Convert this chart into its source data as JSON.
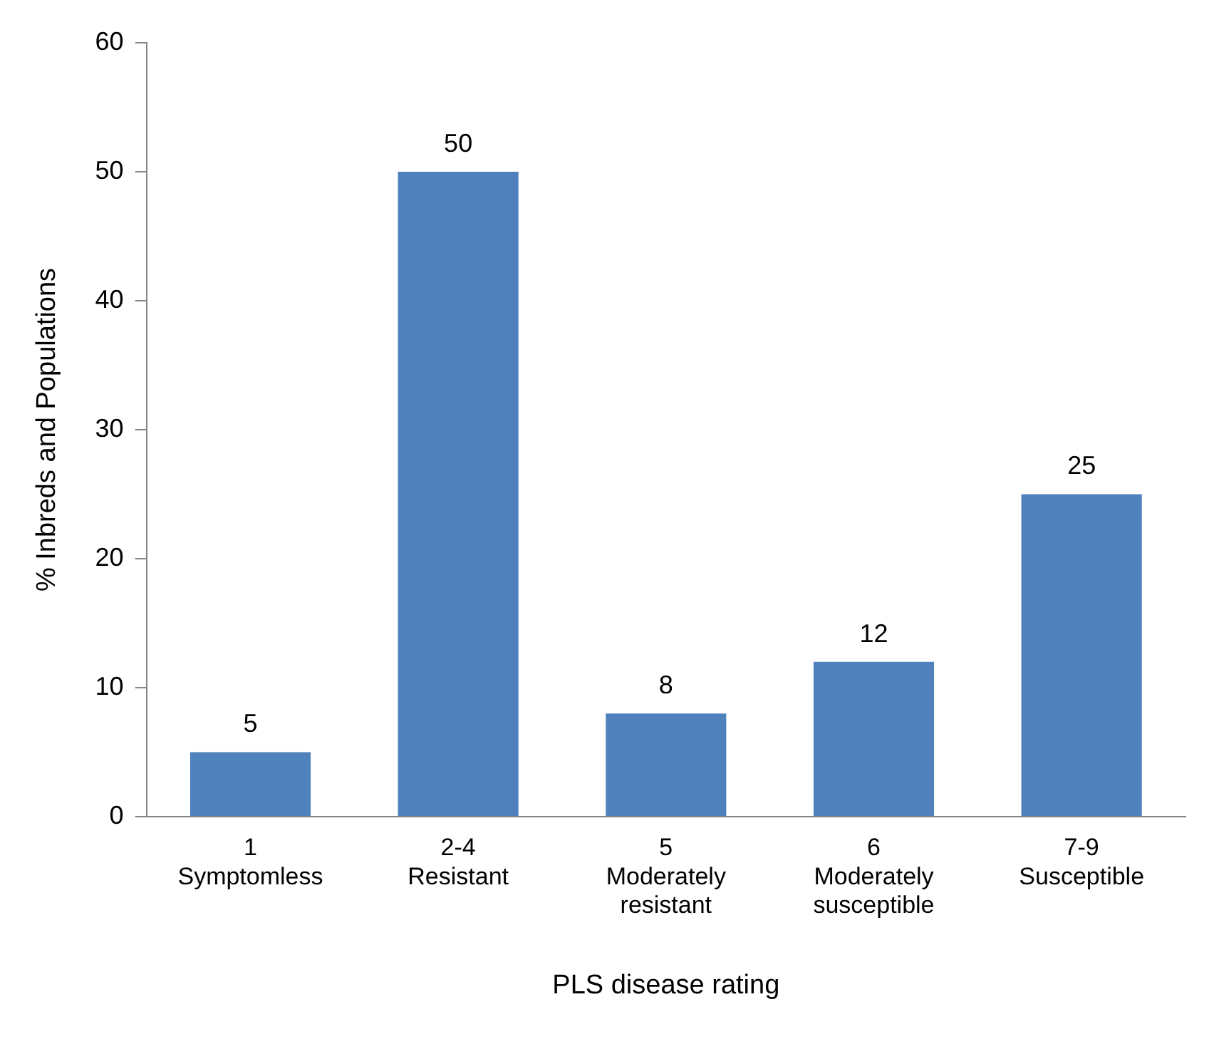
{
  "chart_data": {
    "type": "bar",
    "xlabel": "PLS disease rating",
    "ylabel": "% Inbreds and Populations",
    "categories": [
      "1\nSymptomless",
      "2-4\nResistant",
      "5\nModerately\nresistant",
      "6\nModerately\nsusceptible",
      "7-9\nSusceptible"
    ],
    "values": [
      5,
      50,
      8,
      12,
      25
    ],
    "color": "#4f81bd",
    "ylim": [
      0,
      60
    ],
    "yticks": [
      0,
      10,
      20,
      30,
      40,
      50,
      60
    ],
    "grid": false,
    "legend": false,
    "data_labels": true
  }
}
